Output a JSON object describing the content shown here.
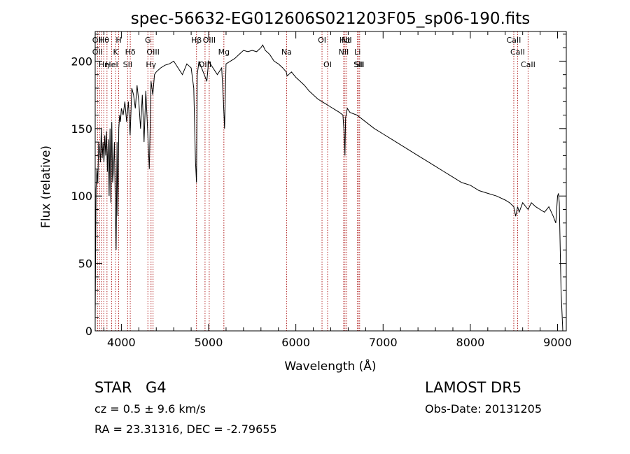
{
  "chart_data": {
    "type": "line",
    "title": "spec-56632-EG012606S021203F05_sp06-190.fits",
    "xlabel": "Wavelength (Å)",
    "ylabel": "Flux (relative)",
    "xlim": [
      3700,
      9100
    ],
    "ylim": [
      0,
      222
    ],
    "x_ticks": [
      4000,
      5000,
      6000,
      7000,
      8000,
      9000
    ],
    "y_ticks": [
      0,
      50,
      100,
      150,
      200
    ],
    "grid": false,
    "line_color": "#000000",
    "marker_color": "#b22222",
    "series": [
      {
        "x": [
          3700,
          3710,
          3720,
          3730,
          3740,
          3750,
          3760,
          3770,
          3780,
          3790,
          3800,
          3810,
          3820,
          3830,
          3840,
          3850,
          3860,
          3870,
          3880,
          3890,
          3900,
          3910,
          3920,
          3930,
          3940,
          3950,
          3960,
          3970,
          3980,
          3990,
          4000,
          4020,
          4040,
          4060,
          4080,
          4100,
          4120,
          4140,
          4160,
          4180,
          4200,
          4220,
          4240,
          4260,
          4280,
          4300,
          4320,
          4340,
          4360,
          4380,
          4400,
          4450,
          4500,
          4550,
          4600,
          4650,
          4700,
          4750,
          4800,
          4830,
          4850,
          4861,
          4870,
          4890,
          4920,
          4950,
          4980,
          5000,
          5050,
          5100,
          5150,
          5170,
          5183,
          5200,
          5250,
          5300,
          5350,
          5400,
          5450,
          5500,
          5550,
          5600,
          5620,
          5650,
          5700,
          5750,
          5800,
          5850,
          5890,
          5900,
          5950,
          6000,
          6050,
          6100,
          6150,
          6200,
          6250,
          6300,
          6350,
          6400,
          6450,
          6500,
          6540,
          6555,
          6563,
          6570,
          6590,
          6620,
          6700,
          6800,
          6900,
          7000,
          7100,
          7200,
          7300,
          7400,
          7500,
          7600,
          7700,
          7800,
          7900,
          8000,
          8100,
          8200,
          8300,
          8400,
          8450,
          8498,
          8520,
          8542,
          8560,
          8600,
          8662,
          8700,
          8750,
          8800,
          8850,
          8900,
          8950,
          8980,
          9000,
          9010,
          9020,
          9040,
          9060
        ],
        "y": [
          10,
          105,
          120,
          110,
          140,
          135,
          125,
          150,
          128,
          140,
          125,
          145,
          130,
          148,
          118,
          142,
          100,
          150,
          95,
          155,
          110,
          120,
          140,
          95,
          60,
          140,
          85,
          150,
          160,
          155,
          165,
          160,
          170,
          155,
          170,
          145,
          180,
          175,
          165,
          182,
          170,
          150,
          175,
          140,
          178,
          150,
          120,
          185,
          175,
          190,
          192,
          195,
          197,
          198,
          200,
          195,
          190,
          198,
          195,
          180,
          125,
          110,
          190,
          200,
          195,
          190,
          185,
          200,
          195,
          190,
          195,
          170,
          150,
          198,
          200,
          202,
          205,
          208,
          207,
          208,
          207,
          210,
          212,
          208,
          205,
          200,
          198,
          195,
          192,
          189,
          192,
          188,
          185,
          182,
          178,
          175,
          172,
          170,
          168,
          166,
          164,
          162,
          160,
          145,
          130,
          158,
          165,
          162,
          160,
          155,
          150,
          146,
          142,
          138,
          134,
          130,
          126,
          122,
          118,
          114,
          110,
          108,
          104,
          102,
          100,
          97,
          95,
          92,
          85,
          92,
          88,
          95,
          90,
          95,
          92,
          90,
          88,
          92,
          85,
          80,
          100,
          102,
          95,
          30,
          0
        ]
      }
    ],
    "line_markers": [
      {
        "x": 3727,
        "label": "OII"
      },
      {
        "x": 3750,
        "label": "OII"
      },
      {
        "x": 3771,
        "label": "Hθ"
      },
      {
        "x": 3798,
        "label": "Hη"
      },
      {
        "x": 3835,
        "label": "Hθ"
      },
      {
        "x": 3889,
        "label": "HeI"
      },
      {
        "x": 3934,
        "label": "K"
      },
      {
        "x": 3969,
        "label": "H"
      },
      {
        "x": 4072,
        "label": "SII"
      },
      {
        "x": 4102,
        "label": "Hδ"
      },
      {
        "x": 4304,
        "label": "G"
      },
      {
        "x": 4340,
        "label": "Hγ"
      },
      {
        "x": 4363,
        "label": "OIII"
      },
      {
        "x": 4861,
        "label": "Hβ"
      },
      {
        "x": 4959,
        "label": "OIII"
      },
      {
        "x": 5007,
        "label": "OIII"
      },
      {
        "x": 5175,
        "label": "Mg"
      },
      {
        "x": 5894,
        "label": "Na"
      },
      {
        "x": 6300,
        "label": "OI"
      },
      {
        "x": 6364,
        "label": "OI"
      },
      {
        "x": 6548,
        "label": "NII"
      },
      {
        "x": 6563,
        "label": "Hα"
      },
      {
        "x": 6583,
        "label": "NII"
      },
      {
        "x": 6707,
        "label": "Li"
      },
      {
        "x": 6716,
        "label": "SII"
      },
      {
        "x": 6731,
        "label": "SII"
      },
      {
        "x": 8498,
        "label": "CaII"
      },
      {
        "x": 8542,
        "label": "CaII"
      },
      {
        "x": 8662,
        "label": "CaII"
      }
    ],
    "labels": [
      {
        "text": "OII",
        "x": 3727
      },
      {
        "text": "Hθ",
        "x": 3800
      },
      {
        "text": "OII",
        "x": 3727
      },
      {
        "text": "Hη",
        "x": 3800
      },
      {
        "text": "HeI",
        "x": 3889
      },
      {
        "text": "K",
        "x": 3934
      },
      {
        "text": "H",
        "x": 3969
      },
      {
        "text": "SII",
        "x": 4072
      },
      {
        "text": "Hδ",
        "x": 4102
      },
      {
        "text": "G",
        "x": 4304
      },
      {
        "text": "Hγ",
        "x": 4340
      },
      {
        "text": "OIII",
        "x": 4363
      },
      {
        "text": "Hβ",
        "x": 4861
      },
      {
        "text": "OIII",
        "x": 4959
      },
      {
        "text": "OIII",
        "x": 5007
      },
      {
        "text": "Mg",
        "x": 5175
      },
      {
        "text": "Na",
        "x": 5894
      },
      {
        "text": "OI",
        "x": 6300
      },
      {
        "text": "OI",
        "x": 6364
      },
      {
        "text": "Hα",
        "x": 6563
      },
      {
        "text": "NII",
        "x": 6548
      },
      {
        "text": "NII",
        "x": 6583
      },
      {
        "text": "SII",
        "x": 6716
      },
      {
        "text": "Li",
        "x": 6707
      },
      {
        "text": "SII",
        "x": 6731
      },
      {
        "text": "CaII",
        "x": 8498
      },
      {
        "text": "CaII",
        "x": 8542
      },
      {
        "text": "CaII",
        "x": 8662
      }
    ]
  },
  "info": {
    "object_class": "STAR",
    "subclass": "G4",
    "redshift": "cz = 0.5 ± 9.6 km/s",
    "coords": "RA =  23.31316, DEC =  -2.79655",
    "survey": "LAMOST DR5",
    "obs_date": "Obs-Date: 20131205"
  }
}
